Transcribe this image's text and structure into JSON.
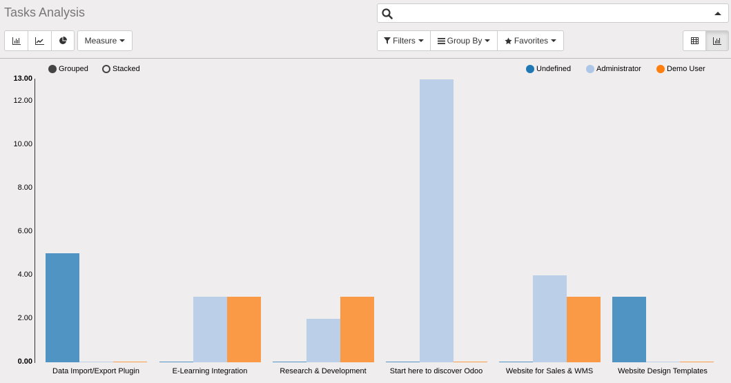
{
  "header": {
    "title": "Tasks Analysis"
  },
  "search": {
    "value": "",
    "placeholder": ""
  },
  "toolbar": {
    "chart_types": [
      {
        "name": "bar-chart",
        "icon": "bar-chart-icon"
      },
      {
        "name": "line-chart",
        "icon": "line-chart-icon"
      },
      {
        "name": "pie-chart",
        "icon": "pie-chart-icon"
      }
    ],
    "measure_label": "Measure",
    "filters_label": "Filters",
    "group_by_label": "Group By",
    "favorites_label": "Favorites",
    "views": [
      {
        "name": "pivot",
        "icon": "grid-icon",
        "active": false
      },
      {
        "name": "graph",
        "icon": "bar-chart-icon",
        "active": true
      }
    ]
  },
  "mode_toggle": {
    "grouped_label": "Grouped",
    "stacked_label": "Stacked",
    "selected": "Grouped"
  },
  "colors": {
    "undefined": "#1f77b4",
    "administrator": "#aec7e8",
    "demo_user": "#ff7f0e"
  },
  "chart_data": {
    "type": "bar",
    "mode": "grouped",
    "categories": [
      "Data Import/Export Plugin",
      "E-Learning Integration",
      "Research & Development",
      "Start here to discover Odoo",
      "Website for Sales & WMS",
      "Website Design Templates"
    ],
    "series": [
      {
        "name": "Undefined",
        "color": "#1f77b4",
        "values": [
          5,
          0,
          0,
          0,
          0,
          3
        ]
      },
      {
        "name": "Administrator",
        "color": "#aec7e8",
        "values": [
          0,
          3,
          2,
          13,
          4,
          0
        ]
      },
      {
        "name": "Demo User",
        "color": "#ff7f0e",
        "values": [
          0,
          3,
          3,
          0,
          3,
          0
        ]
      }
    ],
    "yticks": [
      "0.00",
      "2.00",
      "4.00",
      "6.00",
      "8.00",
      "10.00",
      "12.00",
      "13.00"
    ],
    "ylim": [
      0,
      13
    ],
    "legend_position": "top-right",
    "grid": false,
    "title": "",
    "xlabel": "",
    "ylabel": ""
  }
}
